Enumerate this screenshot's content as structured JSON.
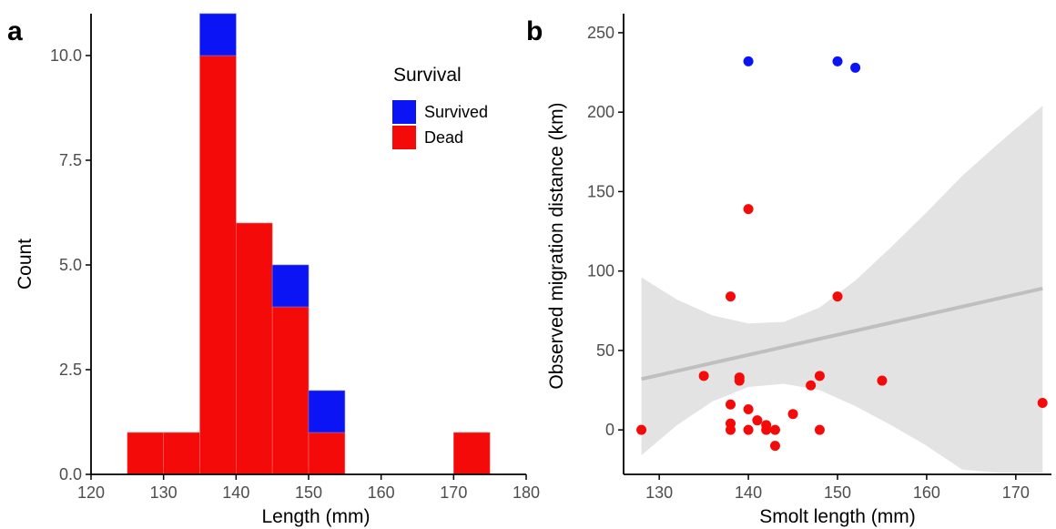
{
  "colors": {
    "survived": "#0a14f5",
    "dead": "#f50a0a",
    "ribbon": "#e3e3e3",
    "fit_line": "#bfbfbf",
    "axis": "#000000",
    "tick_text": "#4d4d4d"
  },
  "chart_data": [
    {
      "type": "bar",
      "panel_label": "a",
      "title": "",
      "xlabel": "Length (mm)",
      "ylabel": "Count",
      "xlim": [
        120,
        180
      ],
      "ylim": [
        0,
        11
      ],
      "x_ticks": [
        "120",
        "130",
        "140",
        "150",
        "160",
        "170",
        "180"
      ],
      "y_ticks": [
        "0.0",
        "2.5",
        "5.0",
        "7.5",
        "10.0"
      ],
      "stacked": true,
      "bins": [
        {
          "x0": 125,
          "x1": 130,
          "dead": 1,
          "survived": 0
        },
        {
          "x0": 130,
          "x1": 135,
          "dead": 1,
          "survived": 0
        },
        {
          "x0": 135,
          "x1": 140,
          "dead": 10,
          "survived": 1
        },
        {
          "x0": 140,
          "x1": 145,
          "dead": 6,
          "survived": 0
        },
        {
          "x0": 145,
          "x1": 150,
          "dead": 4,
          "survived": 1
        },
        {
          "x0": 150,
          "x1": 155,
          "dead": 1,
          "survived": 1
        },
        {
          "x0": 170,
          "x1": 175,
          "dead": 1,
          "survived": 0
        }
      ],
      "legend": {
        "title": "Survival",
        "position": "top-right",
        "entries": [
          {
            "key": "survived",
            "label": "Survived"
          },
          {
            "key": "dead",
            "label": "Dead"
          }
        ]
      }
    },
    {
      "type": "scatter",
      "panel_label": "b",
      "title": "",
      "xlabel": "Smolt length (mm)",
      "ylabel": "Observed migration distance (km)",
      "xlim": [
        126,
        174
      ],
      "ylim": [
        -28,
        262
      ],
      "x_ticks": [
        "130",
        "140",
        "150",
        "160",
        "170"
      ],
      "y_ticks": [
        "0",
        "50",
        "100",
        "150",
        "200",
        "250"
      ],
      "points": [
        {
          "x": 140,
          "y": 232,
          "group": "survived"
        },
        {
          "x": 150,
          "y": 232,
          "group": "survived"
        },
        {
          "x": 152,
          "y": 228,
          "group": "survived"
        },
        {
          "x": 128,
          "y": 0,
          "group": "dead"
        },
        {
          "x": 135,
          "y": 34,
          "group": "dead"
        },
        {
          "x": 138,
          "y": 84,
          "group": "dead"
        },
        {
          "x": 138,
          "y": 16,
          "group": "dead"
        },
        {
          "x": 138,
          "y": 4,
          "group": "dead"
        },
        {
          "x": 138,
          "y": 0,
          "group": "dead"
        },
        {
          "x": 139,
          "y": 33,
          "group": "dead"
        },
        {
          "x": 139,
          "y": 31,
          "group": "dead"
        },
        {
          "x": 140,
          "y": 139,
          "group": "dead"
        },
        {
          "x": 140,
          "y": 13,
          "group": "dead"
        },
        {
          "x": 140,
          "y": 0,
          "group": "dead"
        },
        {
          "x": 141,
          "y": 6,
          "group": "dead"
        },
        {
          "x": 142,
          "y": 3,
          "group": "dead"
        },
        {
          "x": 142,
          "y": 0,
          "group": "dead"
        },
        {
          "x": 143,
          "y": 0,
          "group": "dead"
        },
        {
          "x": 143,
          "y": -10,
          "group": "dead"
        },
        {
          "x": 145,
          "y": 10,
          "group": "dead"
        },
        {
          "x": 147,
          "y": 28,
          "group": "dead"
        },
        {
          "x": 148,
          "y": 34,
          "group": "dead"
        },
        {
          "x": 148,
          "y": 0,
          "group": "dead"
        },
        {
          "x": 150,
          "y": 84,
          "group": "dead"
        },
        {
          "x": 155,
          "y": 31,
          "group": "dead"
        },
        {
          "x": 173,
          "y": 17,
          "group": "dead"
        }
      ],
      "fit_line": [
        {
          "x": 128,
          "y": 32
        },
        {
          "x": 173,
          "y": 89
        }
      ],
      "confidence_band": [
        {
          "x": 128,
          "lower": -16,
          "upper": 96
        },
        {
          "x": 132,
          "lower": 3,
          "upper": 82
        },
        {
          "x": 136,
          "lower": 18,
          "upper": 72
        },
        {
          "x": 140,
          "lower": 27,
          "upper": 67
        },
        {
          "x": 144,
          "lower": 29,
          "upper": 68
        },
        {
          "x": 148,
          "lower": 25,
          "upper": 77
        },
        {
          "x": 152,
          "lower": 15,
          "upper": 94
        },
        {
          "x": 156,
          "lower": 3,
          "upper": 115
        },
        {
          "x": 160,
          "lower": -10,
          "upper": 137
        },
        {
          "x": 164,
          "lower": -25,
          "upper": 160
        },
        {
          "x": 168,
          "lower": -27,
          "upper": 180
        },
        {
          "x": 173,
          "lower": -27,
          "upper": 204
        }
      ]
    }
  ]
}
